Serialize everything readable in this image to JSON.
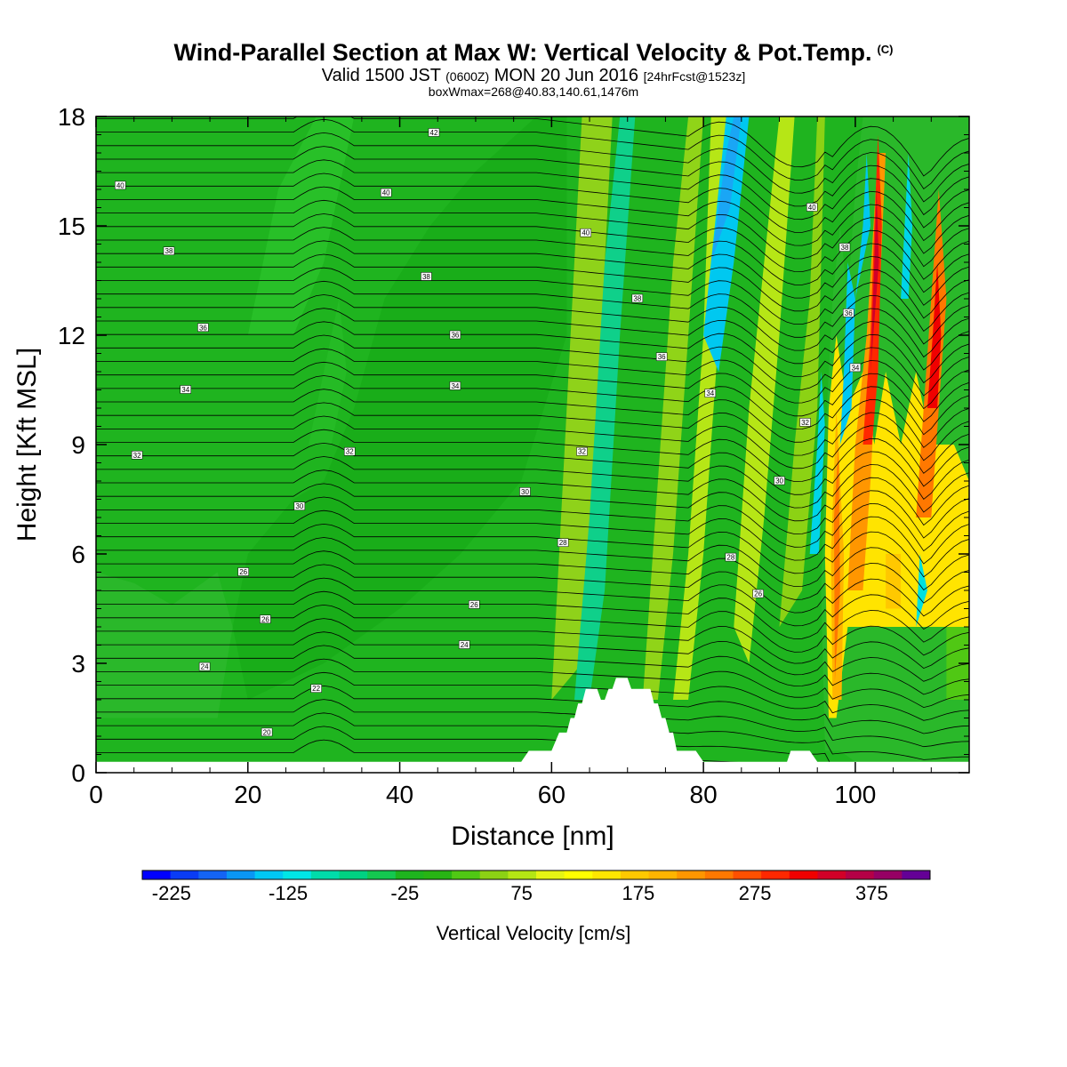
{
  "title": {
    "main": "Wind-Parallel Section at Max W: Vertical Velocity & Pot.Temp.",
    "copyright": "(C)",
    "valid_prefix": "Valid 1500 JST",
    "valid_utc": "(0600Z)",
    "valid_date": "MON 20 Jun 2016",
    "forecast": "[24hrFcst@1523z]",
    "box": "boxWmax=268@40.83,140.61,1476m"
  },
  "chart_data": {
    "type": "heatmap",
    "xlabel": "Distance [nm]",
    "ylabel": "Height [Kft MSL]",
    "xlim": [
      0,
      115
    ],
    "ylim": [
      0,
      18
    ],
    "x_ticks": [
      0,
      20,
      40,
      60,
      80,
      100
    ],
    "y_ticks": [
      0,
      3,
      6,
      9,
      12,
      15,
      18
    ],
    "x_tick_labels": [
      "0",
      "20",
      "40",
      "60",
      "80",
      "100"
    ],
    "y_tick_labels": [
      "0",
      "3",
      "6",
      "9",
      "12",
      "15",
      "18"
    ],
    "colorbar": {
      "title": "Vertical Velocity [cm/s]",
      "min": -250,
      "max": 425,
      "step": 25,
      "tick_values": [
        -225,
        -125,
        -25,
        75,
        175,
        275,
        375
      ],
      "tick_labels": [
        "-225",
        "-125",
        "-25",
        "75",
        "175",
        "275",
        "375"
      ],
      "colors": [
        "#0000ff",
        "#0a3cf5",
        "#1464f5",
        "#0a96f5",
        "#00c8f5",
        "#00e6e6",
        "#00dcaa",
        "#00d282",
        "#14c850",
        "#1eb41e",
        "#28b414",
        "#50c814",
        "#8cd214",
        "#b4e614",
        "#e6f514",
        "#ffff00",
        "#ffe600",
        "#ffc800",
        "#ffb400",
        "#ff9600",
        "#ff7800",
        "#ff5000",
        "#ff2800",
        "#f00000",
        "#d20028",
        "#b40046",
        "#960064",
        "#640096"
      ]
    },
    "terrain_profile": [
      [
        0,
        0.3
      ],
      [
        56,
        0.3
      ],
      [
        57,
        0.6
      ],
      [
        60,
        0.6
      ],
      [
        61,
        1.1
      ],
      [
        62,
        1.1
      ],
      [
        62.5,
        1.5
      ],
      [
        63,
        1.5
      ],
      [
        63.5,
        1.9
      ],
      [
        64,
        1.9
      ],
      [
        64.5,
        2.3
      ],
      [
        66,
        2.3
      ],
      [
        66.5,
        2.0
      ],
      [
        67,
        2.0
      ],
      [
        67.5,
        2.3
      ],
      [
        68,
        2.3
      ],
      [
        68.5,
        2.6
      ],
      [
        70,
        2.6
      ],
      [
        70.5,
        2.3
      ],
      [
        73,
        2.3
      ],
      [
        73.5,
        1.9
      ],
      [
        74,
        1.9
      ],
      [
        74.5,
        1.5
      ],
      [
        75,
        1.5
      ],
      [
        75.5,
        1.1
      ],
      [
        76,
        1.1
      ],
      [
        76.5,
        0.6
      ],
      [
        79,
        0.6
      ],
      [
        80,
        0.3
      ],
      [
        91,
        0.3
      ],
      [
        91.5,
        0.6
      ],
      [
        94,
        0.6
      ],
      [
        95,
        0.3
      ],
      [
        115,
        0.3
      ]
    ],
    "theta_labels": [
      {
        "text": "42",
        "x": 44.5,
        "y": 17.55
      },
      {
        "text": "40",
        "x": 3.2,
        "y": 16.1
      },
      {
        "text": "40",
        "x": 38.2,
        "y": 15.9
      },
      {
        "text": "40",
        "x": 64.5,
        "y": 14.8
      },
      {
        "text": "40",
        "x": 94.3,
        "y": 15.5
      },
      {
        "text": "38",
        "x": 9.6,
        "y": 14.3
      },
      {
        "text": "38",
        "x": 43.5,
        "y": 13.6
      },
      {
        "text": "38",
        "x": 71.3,
        "y": 13.0
      },
      {
        "text": "38",
        "x": 98.6,
        "y": 14.4
      },
      {
        "text": "36",
        "x": 14.1,
        "y": 12.2
      },
      {
        "text": "36",
        "x": 47.3,
        "y": 12.0
      },
      {
        "text": "36",
        "x": 74.5,
        "y": 11.4
      },
      {
        "text": "36",
        "x": 99.1,
        "y": 12.6
      },
      {
        "text": "34",
        "x": 11.8,
        "y": 10.5
      },
      {
        "text": "34",
        "x": 47.3,
        "y": 10.6
      },
      {
        "text": "34",
        "x": 80.9,
        "y": 10.4
      },
      {
        "text": "34",
        "x": 100.0,
        "y": 11.1
      },
      {
        "text": "32",
        "x": 5.4,
        "y": 8.7
      },
      {
        "text": "32",
        "x": 33.4,
        "y": 8.8
      },
      {
        "text": "32",
        "x": 64.0,
        "y": 8.8
      },
      {
        "text": "32",
        "x": 93.4,
        "y": 9.6
      },
      {
        "text": "30",
        "x": 26.8,
        "y": 7.3
      },
      {
        "text": "30",
        "x": 56.5,
        "y": 7.7
      },
      {
        "text": "30",
        "x": 90.0,
        "y": 8.0
      },
      {
        "text": "28",
        "x": 61.5,
        "y": 6.3
      },
      {
        "text": "28",
        "x": 83.6,
        "y": 5.9
      },
      {
        "text": "26",
        "x": 19.4,
        "y": 5.5
      },
      {
        "text": "26",
        "x": 49.8,
        "y": 4.6
      },
      {
        "text": "26",
        "x": 87.2,
        "y": 4.9
      },
      {
        "text": "26",
        "x": 22.3,
        "y": 4.2
      },
      {
        "text": "24",
        "x": 14.3,
        "y": 2.9
      },
      {
        "text": "24",
        "x": 48.5,
        "y": 3.5
      },
      {
        "text": "22",
        "x": 29.0,
        "y": 2.3
      },
      {
        "text": "20",
        "x": 22.5,
        "y": 1.1
      }
    ]
  }
}
